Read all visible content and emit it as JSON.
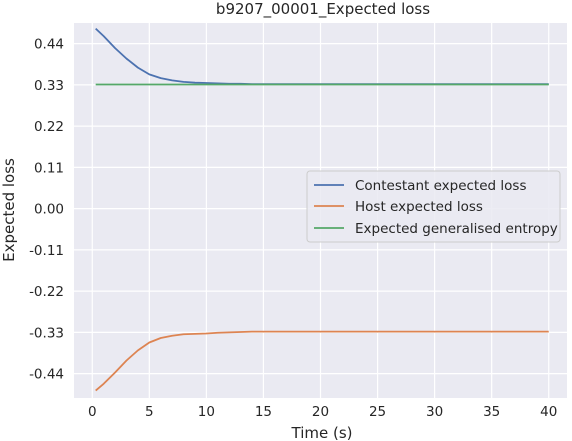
{
  "chart_data": {
    "type": "line",
    "title": "b9207_00001_Expected loss",
    "xlabel": "Time (s)",
    "ylabel": "Expected loss",
    "xlim": [
      -1.6,
      41.6
    ],
    "ylim": [
      -0.505,
      0.495
    ],
    "xticks": [
      0,
      5,
      10,
      15,
      20,
      25,
      30,
      35,
      40
    ],
    "yticks": [
      -0.44,
      -0.33,
      -0.22,
      -0.11,
      0.0,
      0.11,
      0.22,
      0.33,
      0.44
    ],
    "ytick_labels": [
      "-0.44",
      "-0.33",
      "-0.22",
      "-0.11",
      "0.00",
      "0.11",
      "0.22",
      "0.33",
      "0.44"
    ],
    "grid": true,
    "legend_position": "center-right",
    "background": "#eaeaf2",
    "series": [
      {
        "name": "Contestant expected loss",
        "color": "#4c72b0",
        "x": [
          0.3,
          1,
          2,
          3,
          4,
          5,
          6,
          7,
          8,
          9,
          10,
          11,
          12,
          13,
          14,
          15,
          17,
          20,
          25,
          30,
          35,
          40
        ],
        "y": [
          0.48,
          0.46,
          0.428,
          0.4,
          0.376,
          0.358,
          0.348,
          0.342,
          0.338,
          0.336,
          0.335,
          0.334,
          0.333,
          0.333,
          0.332,
          0.332,
          0.332,
          0.332,
          0.332,
          0.332,
          0.332,
          0.332
        ]
      },
      {
        "name": "Host expected loss",
        "color": "#dd8452",
        "x": [
          0.3,
          1,
          2,
          3,
          4,
          5,
          6,
          7,
          8,
          9,
          10,
          11,
          12,
          13,
          14,
          15,
          17,
          20,
          25,
          30,
          35,
          40
        ],
        "y": [
          -0.485,
          -0.467,
          -0.437,
          -0.405,
          -0.378,
          -0.357,
          -0.345,
          -0.339,
          -0.335,
          -0.334,
          -0.333,
          -0.331,
          -0.33,
          -0.329,
          -0.328,
          -0.328,
          -0.328,
          -0.328,
          -0.328,
          -0.328,
          -0.328,
          -0.328
        ]
      },
      {
        "name": "Expected generalised entropy",
        "color": "#55a868",
        "x": [
          0.3,
          40
        ],
        "y": [
          0.331,
          0.331
        ]
      }
    ]
  }
}
